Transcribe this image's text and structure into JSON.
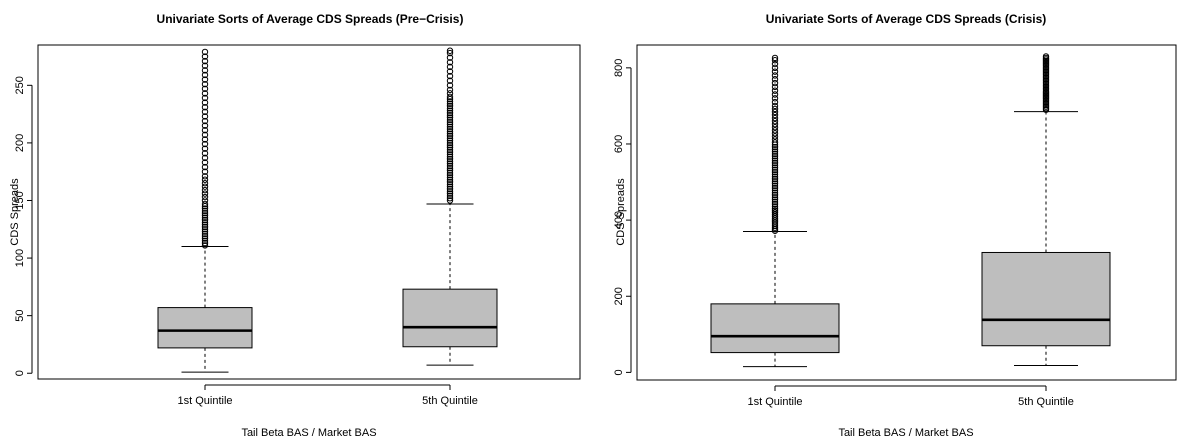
{
  "chart_data": [
    {
      "type": "boxplot",
      "title": "Univariate Sorts of Average CDS Spreads (Pre−Crisis)",
      "xlabel": "Tail Beta BAS / Market BAS",
      "ylabel": "CDS Spreads",
      "categories": [
        "1st Quintile",
        "5th Quintile"
      ],
      "yticks": [
        0,
        50,
        100,
        150,
        200,
        250
      ],
      "ylim": [
        -5,
        285
      ],
      "box_fill": "#bebebe",
      "boxes": [
        {
          "category": "1st Quintile",
          "min": 1,
          "q1": 22,
          "median": 37,
          "q3": 57,
          "whisker_high": 110,
          "outliers": [
            111,
            113,
            115,
            117,
            119,
            121,
            123,
            125,
            127,
            129,
            131,
            133,
            135,
            137,
            139,
            141,
            143,
            145,
            147,
            150,
            153,
            156,
            159,
            162,
            165,
            168,
            171,
            175,
            179,
            183,
            187,
            191,
            195,
            199,
            203,
            207,
            211,
            215,
            219,
            223,
            227,
            231,
            235,
            239,
            243,
            247,
            251,
            255,
            259,
            263,
            267,
            271,
            275,
            279
          ]
        },
        {
          "category": "5th Quintile",
          "min": 7,
          "q1": 23,
          "median": 40,
          "q3": 73,
          "whisker_high": 147,
          "outliers": [
            150,
            152,
            154,
            156,
            158,
            160,
            162,
            164,
            166,
            168,
            170,
            172,
            174,
            176,
            178,
            180,
            182,
            184,
            186,
            188,
            190,
            192,
            194,
            196,
            198,
            200,
            202,
            204,
            206,
            208,
            210,
            212,
            214,
            216,
            218,
            220,
            222,
            224,
            226,
            228,
            230,
            232,
            234,
            236,
            238,
            240,
            243,
            246,
            250,
            254,
            258,
            262,
            266,
            270,
            274,
            278,
            280
          ]
        }
      ]
    },
    {
      "type": "boxplot",
      "title": "Univariate Sorts of Average CDS Spreads (Crisis)",
      "xlabel": "Tail Beta BAS / Market BAS",
      "ylabel": "CDS Spreads",
      "categories": [
        "1st Quintile",
        "5th Quintile"
      ],
      "yticks": [
        0,
        200,
        400,
        600,
        800
      ],
      "ylim": [
        -20,
        860
      ],
      "box_fill": "#bebebe",
      "boxes": [
        {
          "category": "1st Quintile",
          "min": 15,
          "q1": 52,
          "median": 95,
          "q3": 180,
          "whisker_high": 370,
          "outliers": [
            372,
            376,
            380,
            385,
            390,
            395,
            400,
            405,
            410,
            415,
            420,
            425,
            430,
            436,
            442,
            448,
            454,
            460,
            466,
            472,
            478,
            484,
            490,
            496,
            502,
            508,
            514,
            520,
            526,
            532,
            538,
            544,
            550,
            556,
            562,
            568,
            574,
            580,
            586,
            592,
            598,
            604,
            612,
            620,
            628,
            636,
            644,
            652,
            660,
            668,
            676,
            684,
            692,
            700,
            710,
            720,
            730,
            740,
            750,
            760,
            770,
            780,
            790,
            800,
            810,
            820,
            826
          ]
        },
        {
          "category": "5th Quintile",
          "min": 18,
          "q1": 70,
          "median": 138,
          "q3": 315,
          "whisker_high": 685,
          "outliers": [
            690,
            694,
            698,
            702,
            706,
            710,
            714,
            718,
            722,
            726,
            730,
            734,
            738,
            742,
            746,
            750,
            754,
            758,
            762,
            766,
            770,
            774,
            778,
            782,
            786,
            790,
            794,
            798,
            802,
            806,
            810,
            814,
            818,
            822,
            826,
            830
          ]
        }
      ]
    }
  ]
}
